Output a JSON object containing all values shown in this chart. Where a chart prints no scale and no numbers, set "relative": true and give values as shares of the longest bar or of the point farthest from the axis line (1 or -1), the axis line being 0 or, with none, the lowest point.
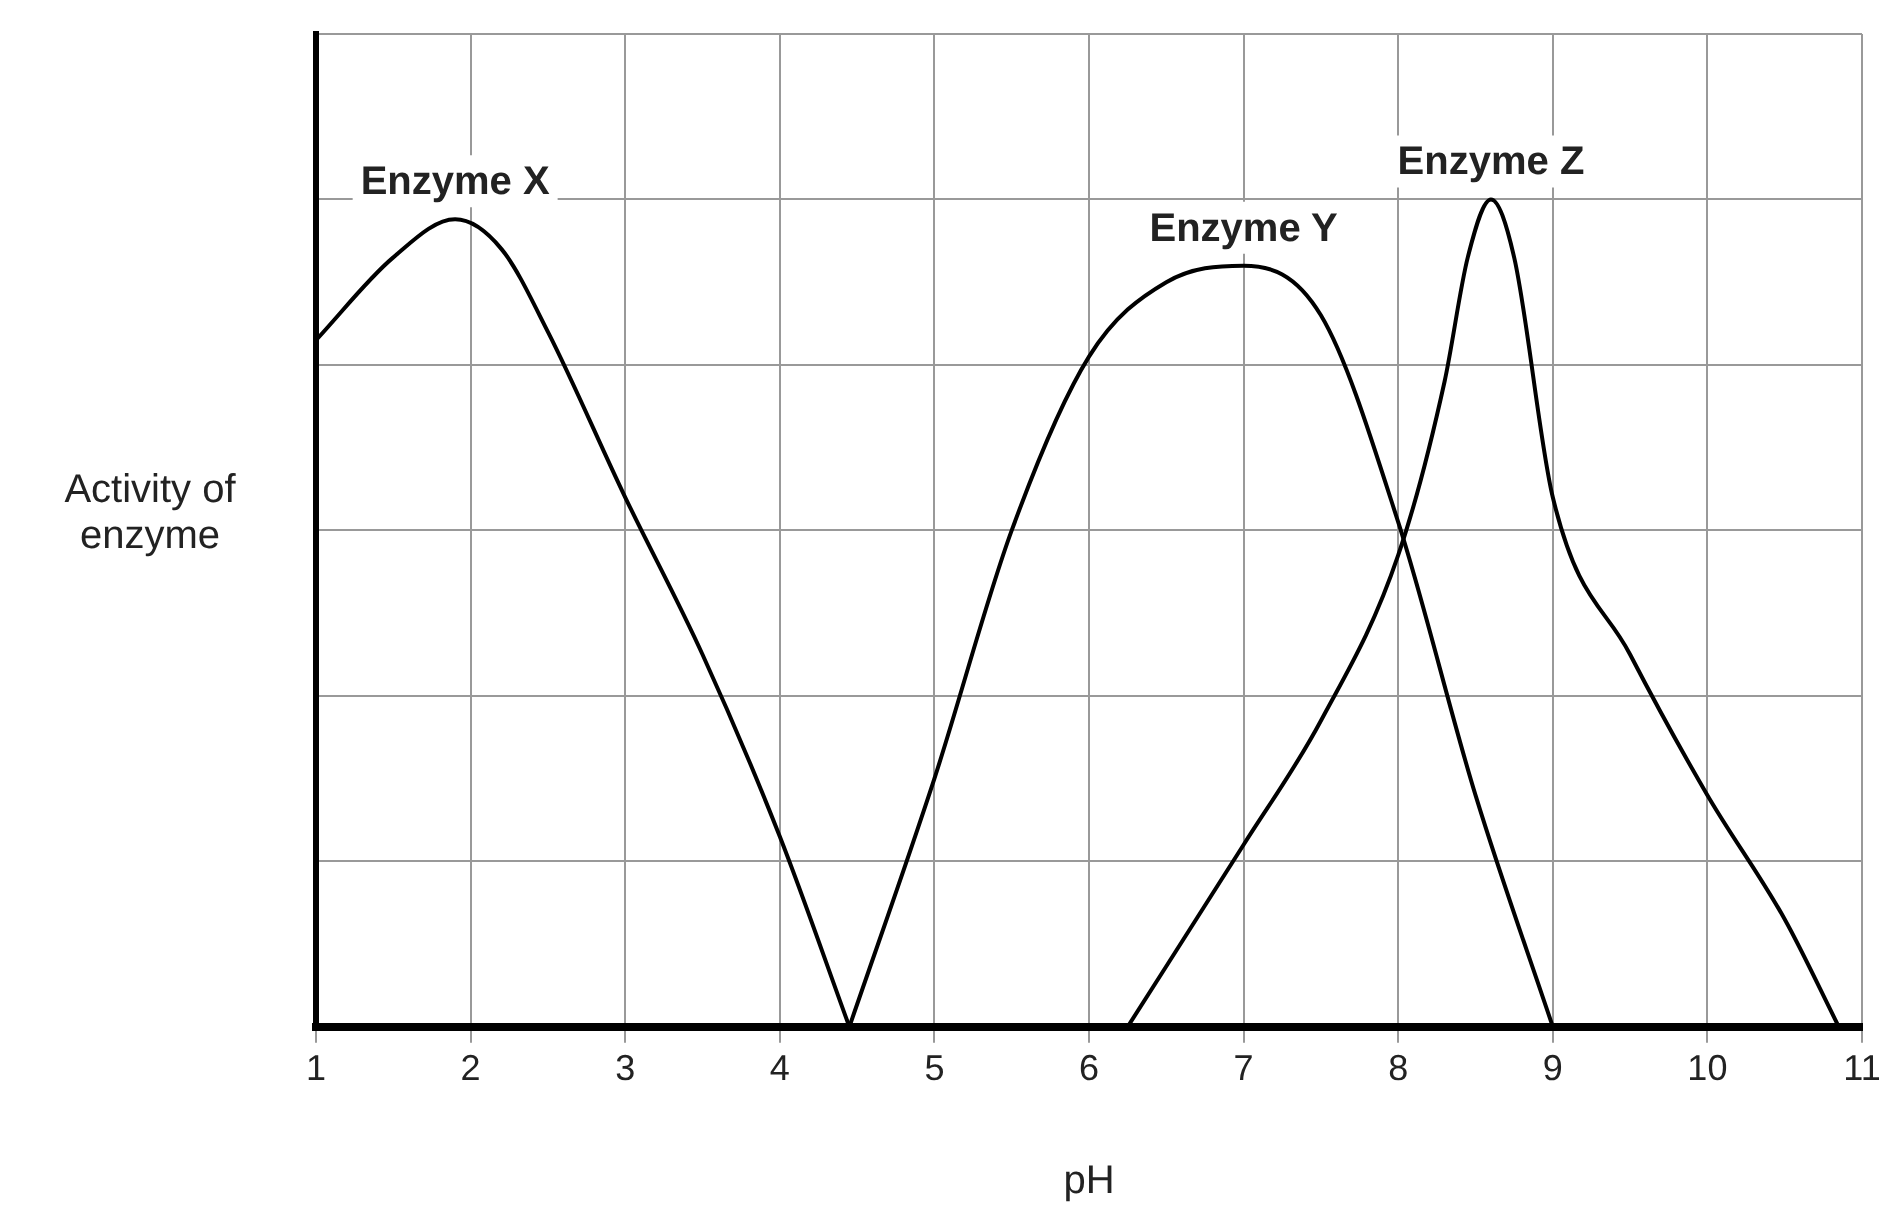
{
  "chart_data": {
    "type": "line",
    "xlabel": "pH",
    "ylabel": "Activity of enzyme",
    "relative": true,
    "xlim": [
      1,
      11
    ],
    "xticks": [
      1,
      2,
      3,
      4,
      5,
      6,
      7,
      8,
      9,
      10,
      11
    ],
    "grid": true,
    "legend": false,
    "marker": "none",
    "line_style": "solid",
    "series": [
      {
        "name": "Enzyme X",
        "color": "#000000",
        "x": [
          1,
          1.5,
          1.9,
          2.2,
          2.5,
          3,
          3.5,
          4,
          4.45
        ],
        "values": [
          0.83,
          0.93,
          0.976,
          0.94,
          0.84,
          0.64,
          0.45,
          0.23,
          0
        ]
      },
      {
        "name": "Enzyme Y",
        "color": "#000000",
        "x": [
          4.45,
          5,
          5.5,
          6,
          6.5,
          7,
          7.5,
          8,
          8.5,
          9
        ],
        "values": [
          0,
          0.3,
          0.6,
          0.81,
          0.9,
          0.92,
          0.86,
          0.61,
          0.28,
          0
        ]
      },
      {
        "name": "Enzyme Z",
        "color": "#000000",
        "x": [
          6.25,
          7,
          7.5,
          8,
          8.3,
          8.45,
          8.6,
          8.75,
          9,
          9.5,
          10,
          10.5,
          10.85
        ],
        "values": [
          0,
          0.22,
          0.37,
          0.57,
          0.78,
          0.93,
          1,
          0.93,
          0.64,
          0.45,
          0.28,
          0.13,
          0
        ]
      }
    ]
  }
}
